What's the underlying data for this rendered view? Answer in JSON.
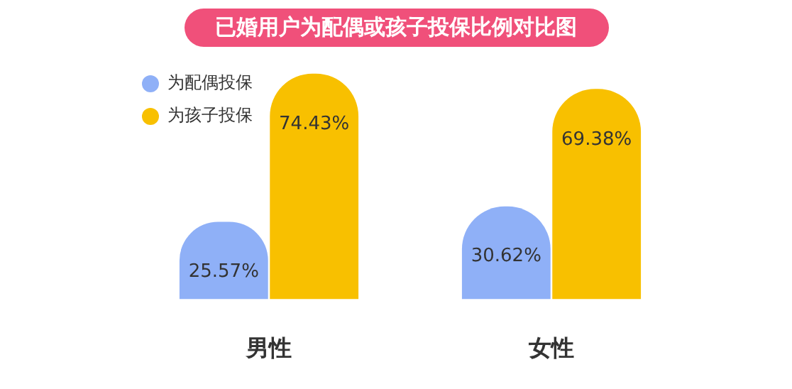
{
  "chart_data": {
    "type": "bar",
    "title": "已婚用户为配偶或孩子投保比例对比图",
    "categories": [
      "男性",
      "女性"
    ],
    "series": [
      {
        "name": "为配偶投保",
        "color": "#8fb0f7",
        "values": [
          25.57,
          30.62
        ],
        "value_labels": [
          "25.57%",
          "30.62%"
        ]
      },
      {
        "name": "为孩子投保",
        "color": "#f8c000",
        "values": [
          74.43,
          69.38
        ],
        "value_labels": [
          "74.43%",
          "69.38%"
        ]
      }
    ],
    "legend": "top left"
  }
}
